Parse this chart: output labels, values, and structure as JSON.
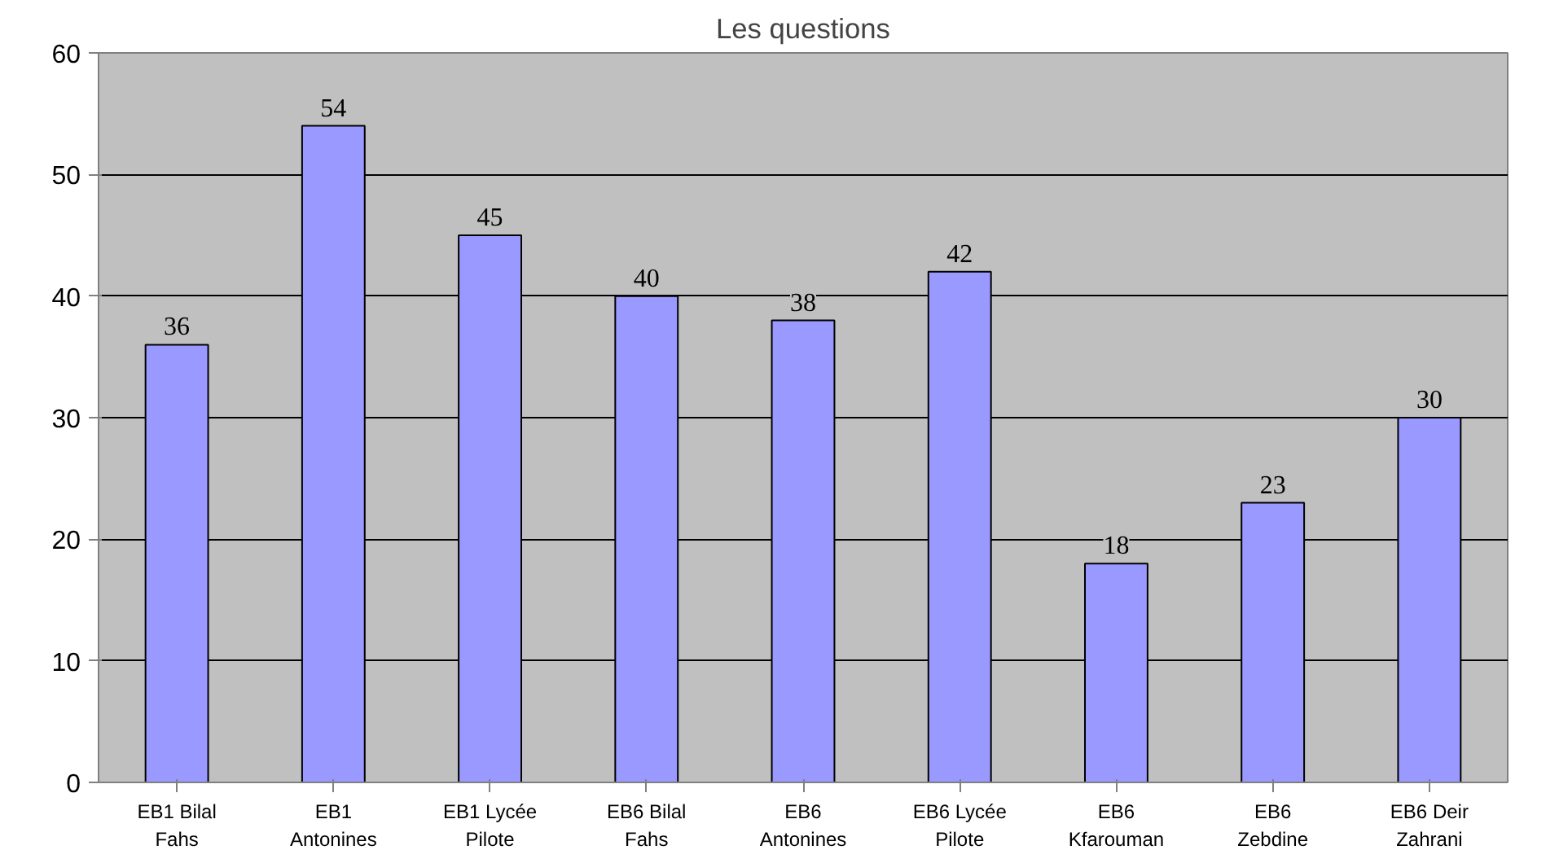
{
  "chart_data": {
    "type": "bar",
    "title": "Les questions",
    "categories": [
      "EB1 Bilal\nFahs",
      "EB1\nAntonines",
      "EB1 Lycée\nPilote",
      "EB6 Bilal\nFahs",
      "EB6\nAntonines",
      "EB6 Lycée\nPilote",
      "EB6\nKfarouman",
      "EB6\nZebdine",
      "EB6 Deir\nZahrani"
    ],
    "values": [
      36,
      54,
      45,
      40,
      38,
      42,
      18,
      23,
      30
    ],
    "color": "#9999ff",
    "ylim": [
      0,
      60
    ],
    "yticks": [
      0,
      10,
      20,
      30,
      40,
      50,
      60
    ],
    "grid": "y",
    "data_labels": true
  }
}
